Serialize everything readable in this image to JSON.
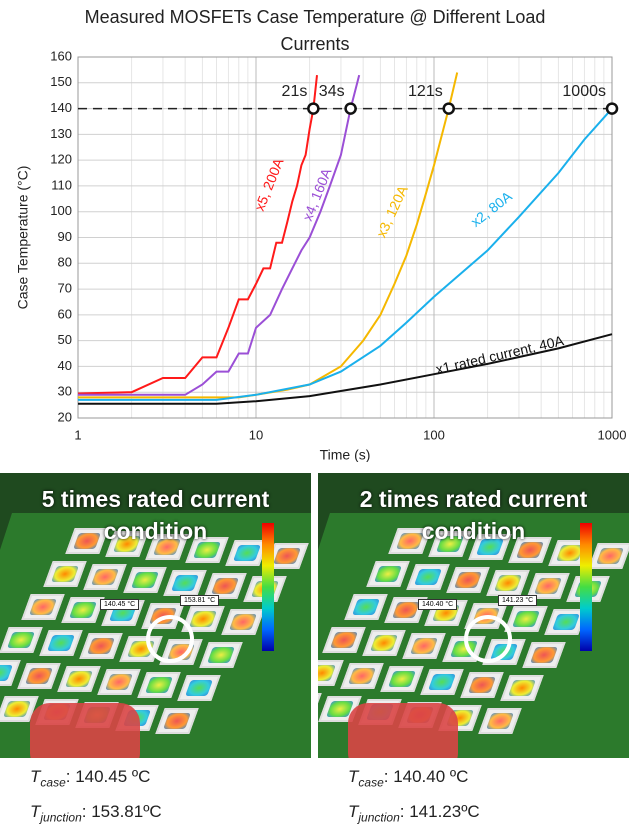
{
  "chart_data": {
    "type": "line",
    "title": "Measured MOSFETs Case Temperature @ Different Load Currents",
    "x_label": "Time (s)",
    "y_label": "Case Temperature (°C)",
    "xscale": "log",
    "xlim": [
      1,
      1000
    ],
    "xticks": [
      1,
      10,
      100,
      1000
    ],
    "ylim": [
      20,
      160
    ],
    "yticks": [
      20,
      30,
      40,
      50,
      60,
      70,
      80,
      90,
      100,
      110,
      120,
      130,
      140,
      150,
      160
    ],
    "grid": true,
    "threshold": 140,
    "series": [
      {
        "name": "x5, 200A",
        "color": "#ff1a1a",
        "x": [
          1,
          2,
          3,
          4,
          5,
          6,
          7,
          8,
          9,
          10,
          11,
          12,
          13,
          14,
          15,
          16,
          17,
          18,
          19,
          20,
          21,
          22
        ],
        "values": [
          29.5,
          30,
          35.5,
          35.5,
          43.5,
          43.5,
          55,
          66,
          66,
          72,
          78,
          78,
          88,
          88,
          96,
          104,
          110,
          118,
          122,
          132,
          140,
          153
        ]
      },
      {
        "name": "x4, 160A",
        "color": "#9b4fd6",
        "x": [
          1,
          4,
          5,
          6,
          7,
          8,
          9,
          10,
          12,
          14,
          16,
          18,
          20,
          23,
          26,
          30,
          34,
          38
        ],
        "values": [
          29,
          29,
          33,
          38,
          38,
          45,
          45,
          55,
          60,
          70,
          78,
          85,
          90,
          100,
          110,
          122,
          140,
          153
        ]
      },
      {
        "name": "x3, 120A",
        "color": "#f5b800",
        "x": [
          1,
          8,
          10,
          15,
          20,
          30,
          40,
          50,
          60,
          70,
          80,
          90,
          100,
          121,
          135
        ],
        "values": [
          28,
          28,
          29,
          31,
          33,
          40,
          50,
          60,
          72,
          83,
          95,
          107,
          118,
          140,
          154
        ]
      },
      {
        "name": "x2, 80A",
        "color": "#1ab0ec",
        "x": [
          1,
          6,
          10,
          20,
          30,
          50,
          70,
          100,
          200,
          300,
          500,
          700,
          1000
        ],
        "values": [
          27,
          27,
          29,
          33,
          38,
          48,
          57,
          67,
          85,
          98,
          115,
          128,
          140
        ]
      },
      {
        "name": "x1 rated current, 40A",
        "color": "#111111",
        "x": [
          1,
          6,
          10,
          20,
          50,
          100,
          200,
          500,
          1000
        ],
        "values": [
          25.5,
          25.5,
          26.5,
          28.5,
          33,
          37,
          41,
          47,
          52.5
        ]
      }
    ],
    "markers": [
      {
        "label": "21s",
        "x": 21,
        "y": 140
      },
      {
        "label": "34s",
        "x": 34,
        "y": 140
      },
      {
        "label": "121s",
        "x": 121,
        "y": 140
      },
      {
        "label": "1000s",
        "x": 1000,
        "y": 140
      }
    ]
  },
  "panels": [
    {
      "title": "5 times rated current condition",
      "probe_labels": [
        "140.45 °C",
        "153.81 °C"
      ],
      "captions": [
        {
          "symbol": "T",
          "subscript": "case",
          "text": ": 140.45 ºC"
        },
        {
          "symbol": "T",
          "subscript": "junction",
          "text": ": 153.81ºC"
        }
      ]
    },
    {
      "title": "2 times rated current condition",
      "probe_labels": [
        "140.40 °C",
        "141.23 °C"
      ],
      "captions": [
        {
          "symbol": "T",
          "subscript": "case",
          "text": ": 140.40 ºC"
        },
        {
          "symbol": "T",
          "subscript": "junction",
          "text": ": 141.23ºC"
        }
      ]
    }
  ]
}
